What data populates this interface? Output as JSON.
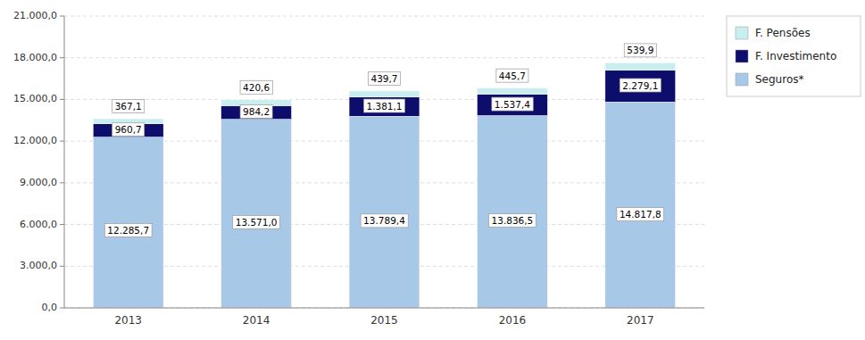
{
  "chart_data": {
    "type": "bar",
    "stacked": true,
    "categories": [
      "2013",
      "2014",
      "2015",
      "2016",
      "2017"
    ],
    "series": [
      {
        "name": "Seguros*",
        "color": "#A8C8E8",
        "values": [
          12285.7,
          13571.0,
          13789.4,
          13836.5,
          14817.8
        ],
        "value_labels": [
          "12.285,7",
          "13.571,0",
          "13.789,4",
          "13.836,5",
          "14.817,8"
        ]
      },
      {
        "name": "F. Investimento",
        "color": "#0D0D6B",
        "values": [
          960.7,
          984.2,
          1381.1,
          1537.4,
          2279.1
        ],
        "value_labels": [
          "960,7",
          "984,2",
          "1.381,1",
          "1.537,4",
          "2.279,1"
        ]
      },
      {
        "name": "F. Pensões",
        "color": "#C8EEF0",
        "values": [
          367.1,
          420.6,
          439.7,
          445.7,
          539.9
        ],
        "value_labels": [
          "367,1",
          "420,6",
          "439,7",
          "445,7",
          "539,9"
        ]
      }
    ],
    "ylim": [
      0,
      21000
    ],
    "yticks": [
      {
        "value": 0,
        "label": "0,0"
      },
      {
        "value": 3000,
        "label": "3.000,0"
      },
      {
        "value": 6000,
        "label": "6.000,0"
      },
      {
        "value": 9000,
        "label": "9.000,0"
      },
      {
        "value": 12000,
        "label": "12.000,0"
      },
      {
        "value": 15000,
        "label": "15.000,0"
      },
      {
        "value": 18000,
        "label": "18.000,0"
      },
      {
        "value": 21000,
        "label": "21.000,0"
      }
    ],
    "grid": true,
    "data_labels": true,
    "legend": "right"
  }
}
